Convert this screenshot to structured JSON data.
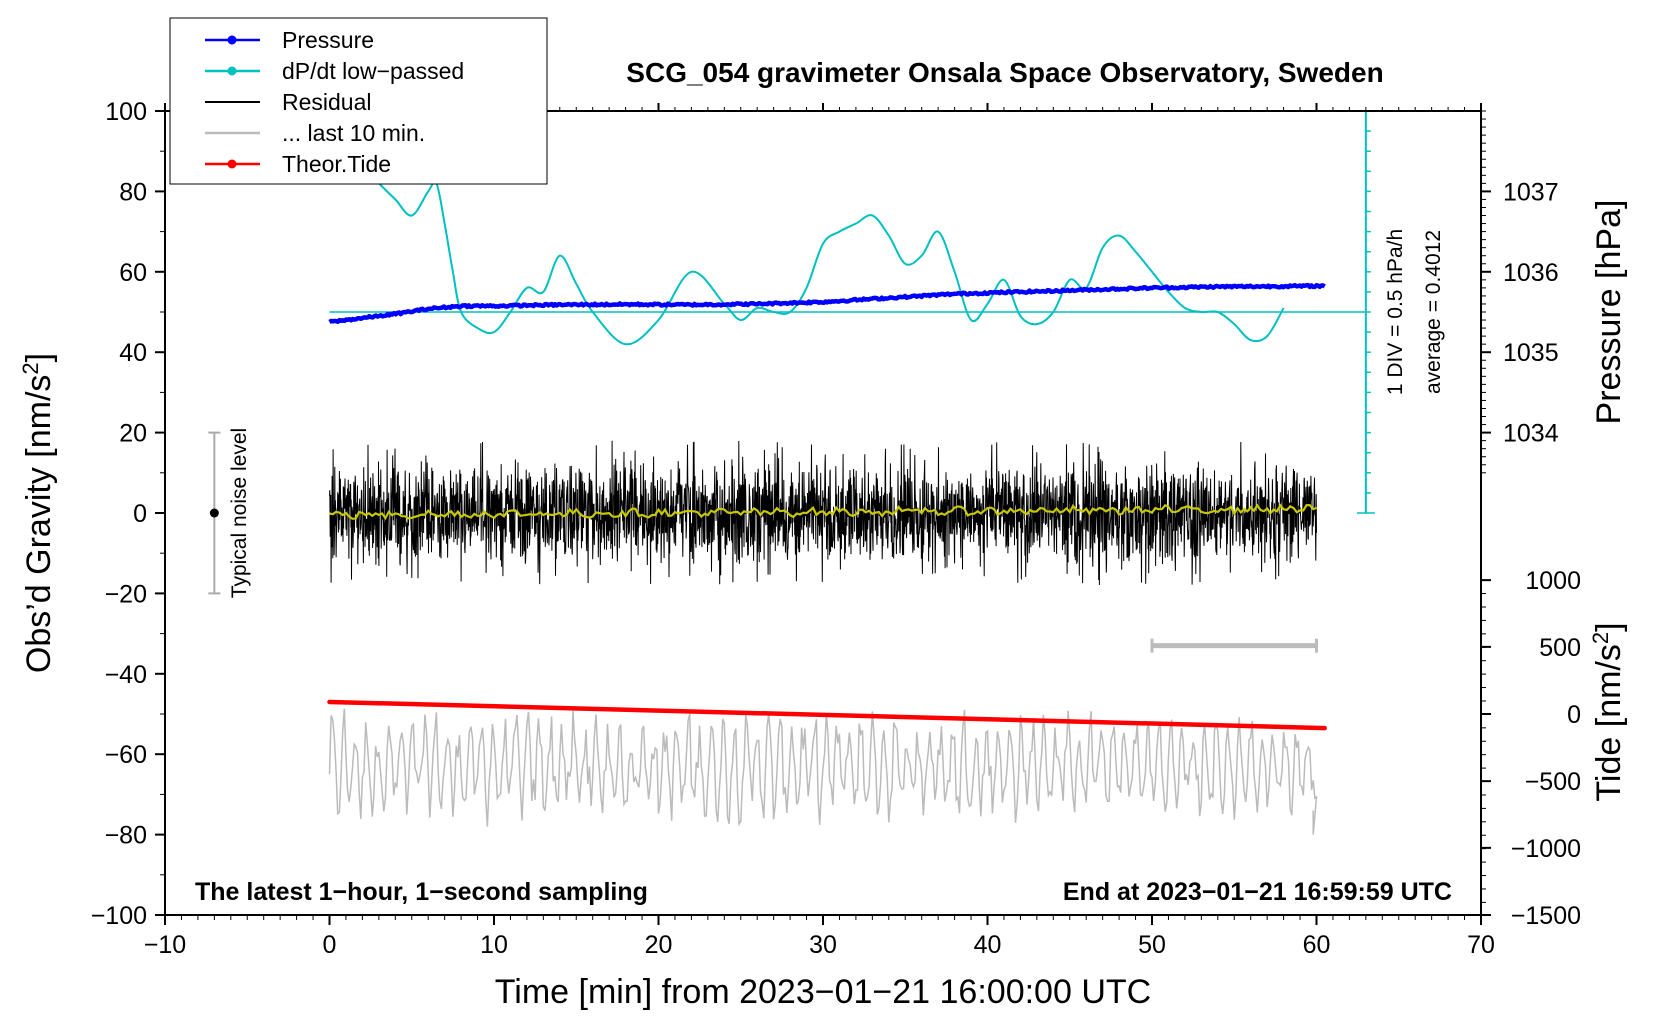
{
  "chart_data": {
    "type": "line",
    "title": "SCG_054 gravimeter Onsala Space Observatory, Sweden",
    "xlabel": "Time [min] from 2023−01−21 16:00:00 UTC",
    "ylabel_left": "Obs’d Gravity [nm/s²]",
    "ylabel_left_main": "Obs’d Gravity [nm/s",
    "ylabel_left_sup": "2",
    "ylabel_left_close": "]",
    "ylabel_right_top": "Pressure [hPa]",
    "ylabel_right_bottom": "Tide [nm/s²]",
    "ylabel_right_bottom_main": "Tide [nm/s",
    "ylabel_right_bottom_sup": "2",
    "ylabel_right_bottom_close": "]",
    "xlim": [
      -10,
      70
    ],
    "ylim_left": [
      -100,
      100
    ],
    "x_ticks": [
      -10,
      0,
      10,
      20,
      30,
      40,
      50,
      60,
      70
    ],
    "x_tick_labels": [
      "−10",
      "0",
      "10",
      "20",
      "30",
      "40",
      "50",
      "60",
      "70"
    ],
    "y_left_ticks": [
      100,
      80,
      60,
      40,
      20,
      0,
      -20,
      -40,
      -60,
      -80,
      -100
    ],
    "y_left_tick_labels": [
      "100",
      "80",
      "60",
      "40",
      "20",
      "0",
      "−20",
      "−40",
      "−60",
      "−80",
      "−100"
    ],
    "pressure_axis": {
      "ticks": [
        1037,
        1036,
        1035,
        1034
      ],
      "tick_labels": [
        "1037",
        "1036",
        "1035",
        "1034"
      ],
      "gravity_equivalent": {
        "1037": 80,
        "1036": 60,
        "1035": 40,
        "1034": 20
      }
    },
    "tide_axis": {
      "ticks": [
        1000,
        500,
        0,
        -500,
        -1000,
        -1500
      ],
      "tick_labels": [
        "1000",
        "500",
        "0",
        "−500",
        "−1000",
        "−1500"
      ],
      "gravity_equivalent": {
        "1000": -16.7,
        "500": -33.3,
        "0": -50,
        "-500": -66.7,
        "-1000": -83.3,
        "-1500": -100
      }
    },
    "legend": [
      {
        "label": "Pressure",
        "color": "#0000ff",
        "marker": "dot"
      },
      {
        "label": "dP/dt low−passed",
        "color": "#00c0c0",
        "marker": "dot"
      },
      {
        "label": "Residual",
        "color": "#000000",
        "marker": "none"
      },
      {
        "label": "... last 10 min.",
        "color": "#bbbbbb",
        "marker": "none"
      },
      {
        "label": "Theor.Tide",
        "color": "#ff0000",
        "marker": "dot"
      }
    ],
    "series": [
      {
        "name": "Pressure",
        "color": "#0000ff",
        "x": [
          0,
          2,
          4,
          6,
          8,
          10,
          14,
          18,
          22,
          26,
          30,
          34,
          38,
          42,
          46,
          50,
          54,
          58,
          60.5
        ],
        "y": [
          47.5,
          48.5,
          49.5,
          50.8,
          51.5,
          51.5,
          51.8,
          51.9,
          51.8,
          52,
          52.5,
          53.5,
          54.5,
          55,
          55.5,
          56,
          56.3,
          56.4,
          56.5
        ]
      },
      {
        "name": "dP/dt low−passed",
        "color": "#00c0c0",
        "x": [
          3,
          4,
          5,
          6,
          6.5,
          7,
          7.5,
          8,
          9,
          10,
          11,
          12,
          13,
          14,
          15,
          16,
          18,
          20,
          22,
          24,
          25,
          26,
          27,
          28,
          29,
          30,
          31,
          32,
          33,
          34,
          35,
          36,
          37,
          38,
          39,
          40,
          41,
          42,
          43,
          44,
          45,
          46,
          47,
          48,
          49,
          50,
          51,
          52,
          53,
          54,
          55,
          56,
          57,
          58
        ],
        "y": [
          82,
          78,
          74,
          80,
          82,
          72,
          60,
          50,
          46,
          45,
          50,
          56,
          55,
          64,
          57,
          50,
          42,
          48,
          60,
          52,
          48,
          51,
          50,
          50,
          56,
          67,
          70,
          72,
          74,
          69,
          62,
          64,
          70,
          60,
          48,
          52,
          58,
          49,
          47,
          50,
          58,
          56,
          66,
          69,
          65,
          60,
          55,
          51,
          50,
          50,
          47,
          43,
          44,
          51
        ]
      },
      {
        "name": "dP/dt zero line",
        "color": "#00c0c0",
        "level": 50
      },
      {
        "name": "Residual",
        "color": "#000000",
        "x_range": [
          0,
          60
        ],
        "approx_range": [
          -18,
          18
        ]
      },
      {
        "name": "Residual smoothed",
        "color": "#c8c800",
        "x": [
          0,
          10,
          20,
          30,
          40,
          50,
          60
        ],
        "y": [
          -0.5,
          0,
          0,
          0.5,
          0.5,
          0.8,
          1
        ]
      },
      {
        "name": "... last 10 min.",
        "color": "#bbbbbb",
        "x_range": [
          0,
          60
        ],
        "approx_range": [
          -80,
          -45
        ]
      },
      {
        "name": "Theor.Tide",
        "color": "#ff0000",
        "x": [
          0,
          60.5
        ],
        "y": [
          -47,
          -53.5
        ]
      }
    ],
    "noise_bar": {
      "x": -7,
      "range": [
        -20,
        20
      ],
      "label": "Typical noise level"
    },
    "last_10_min_bar": {
      "x_range": [
        50,
        60
      ],
      "y": -33
    },
    "dpdt_scale": {
      "x": 63,
      "range": [
        0,
        100
      ],
      "divisions": 20,
      "label_div": "1 DIV = 0.5 hPa/h",
      "label_avg": "average = 0.4012"
    },
    "annotations": [
      "The latest 1−hour, 1−second sampling",
      "End at 2023−01−21 16:59:59 UTC"
    ]
  }
}
